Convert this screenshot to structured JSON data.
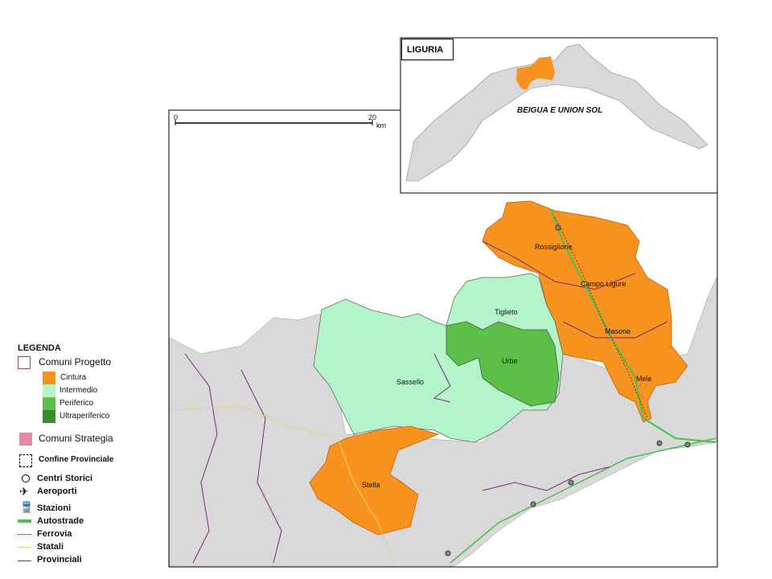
{
  "colors": {
    "cintura": "#f7931e",
    "intermedio": "#b3f5c8",
    "periferico": "#5cbf48",
    "ultraperiferico": "#3a8a2e",
    "strategia": "#e48aa8",
    "background": "#d9d9d9",
    "provinciali": "#7b2a7b",
    "statali": "#e6d27a",
    "autostrade": "#4cbf4c"
  },
  "scale": {
    "start": "0",
    "end": "20",
    "unit": "km"
  },
  "inset": {
    "title": "LIGURIA",
    "area_label": "BEIGUA E UNION SOL"
  },
  "places": [
    "Rossiglione",
    "Campo Ligure",
    "Tiglieto",
    "Masone",
    "Urbe",
    "Sassello",
    "Mele",
    "Stella"
  ],
  "legend": {
    "title": "LEGENDA",
    "comuni_progetto": "Comuni Progetto",
    "classes": [
      "Cintura",
      "Intermedio",
      "Periferico",
      "Ultraperiferico"
    ],
    "comuni_strategia": "Comuni Strategia",
    "confine": "Confine Provinciale",
    "centri": "Centri Storici",
    "aeroporti": "Aeroporti",
    "stazioni": "Stazioni",
    "autostrade": "Autostrade",
    "ferrovia": "Ferrovia",
    "statali": "Statali",
    "provinciali": "Provinciali"
  }
}
